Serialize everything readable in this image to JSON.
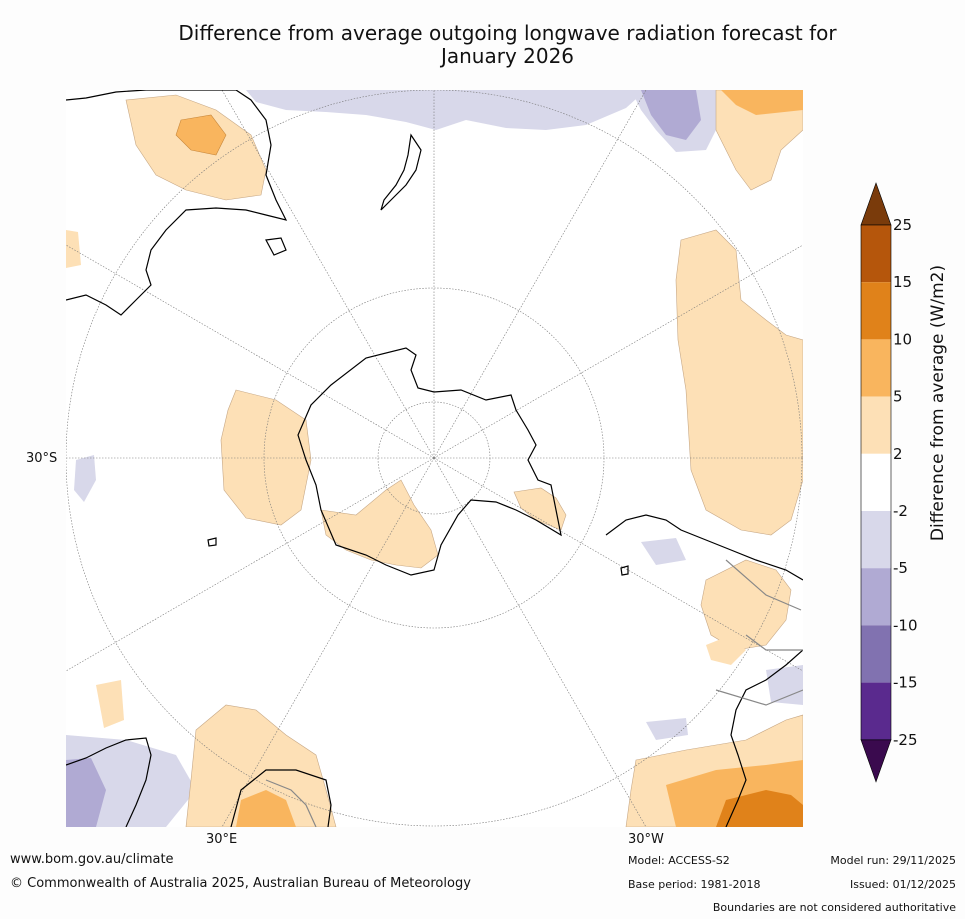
{
  "title_line1": "Difference from average outgoing longwave radiation forecast for",
  "title_line2": "January 2026",
  "axis_labels": {
    "lat_30s": "30°S",
    "lon_30e": "30°E",
    "lon_30w": "30°W"
  },
  "legend": {
    "title": "Difference from average (W/m2)",
    "ticks": [
      "25",
      "15",
      "10",
      "5",
      "2",
      "-2",
      "-5",
      "-10",
      "-15",
      "-25"
    ],
    "colors": [
      "#7a3b0b",
      "#b5560c",
      "#e0821a",
      "#f9b55e",
      "#fde0b6",
      "#ffffff",
      "#d8d8ea",
      "#b0aad3",
      "#8172b0",
      "#5a2a8e",
      "#3a0a4e"
    ]
  },
  "footer": {
    "url": "www.bom.gov.au/climate",
    "copyright": "© Commonwealth of Australia 2025, Australian Bureau of Meteorology",
    "model": "Model: ACCESS-S2",
    "base_period": "Base period: 1981-2018",
    "model_run": "Model run: 29/11/2025",
    "issued": "Issued: 01/12/2025",
    "disclaimer": "Boundaries are not considered authoritative"
  }
}
